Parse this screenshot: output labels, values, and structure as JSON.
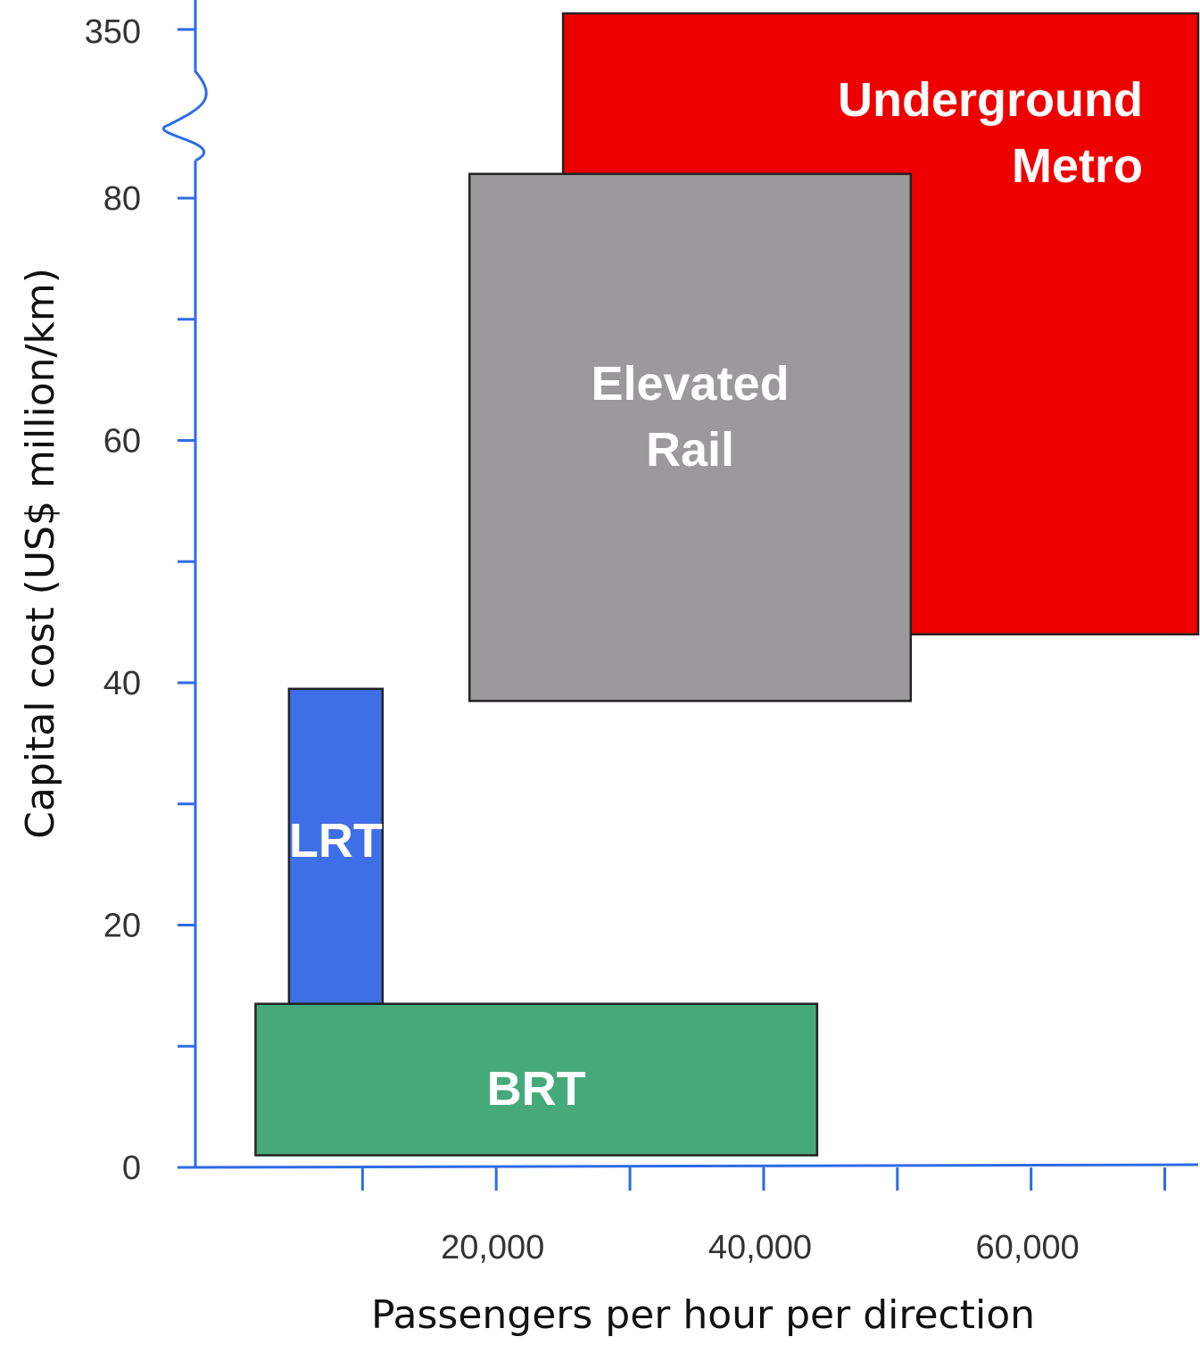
{
  "chart_data": {
    "type": "range-box",
    "xlabel": "Passengers per hour per direction",
    "ylabel": "Capital cost (US$ million/km)",
    "x_tick_labels": [
      {
        "value": 20000,
        "label": "20,000"
      },
      {
        "value": 40000,
        "label": "40,000"
      },
      {
        "value": 60000,
        "label": "60,000"
      }
    ],
    "x_ticks": [
      10000,
      20000,
      30000,
      40000,
      50000,
      60000,
      70000
    ],
    "xlim": [
      -2500,
      72500
    ],
    "y_tick_labels": [
      {
        "value": 0,
        "label": "0"
      },
      {
        "value": 20,
        "label": "20"
      },
      {
        "value": 40,
        "label": "40"
      },
      {
        "value": 60,
        "label": "60"
      },
      {
        "value": 80,
        "label": "80"
      }
    ],
    "y_ticks": [
      0,
      10,
      20,
      30,
      40,
      50,
      60,
      70,
      80
    ],
    "ylim": [
      0,
      80
    ],
    "y_break": {
      "label": "350",
      "upper_value": 350,
      "description": "axis break between 80 and 350"
    },
    "series": [
      {
        "name": "Underground Metro",
        "label_lines": [
          "Underground",
          "Metro"
        ],
        "x_range": [
          25000,
          72500
        ],
        "y_range": [
          44,
          350
        ],
        "color": "#EE0000",
        "extends_past_break": true
      },
      {
        "name": "Elevated Rail",
        "label_lines": [
          "Elevated",
          "Rail"
        ],
        "x_range": [
          18000,
          51000
        ],
        "y_range": [
          38.5,
          82
        ],
        "color": "#9B999C",
        "extends_past_break": false
      },
      {
        "name": "LRT",
        "label_lines": [
          "LRT"
        ],
        "x_range": [
          4500,
          11500
        ],
        "y_range": [
          12.5,
          39.5
        ],
        "color": "#3F6FE6",
        "extends_past_break": false
      },
      {
        "name": "BRT",
        "label_lines": [
          "BRT"
        ],
        "x_range": [
          2000,
          44000
        ],
        "y_range": [
          1,
          13.5
        ],
        "color": "#46A97A",
        "extends_past_break": false
      }
    ],
    "axis_color": "#2E6BE6",
    "grid": false,
    "legend": "none (boxes labeled directly)"
  }
}
